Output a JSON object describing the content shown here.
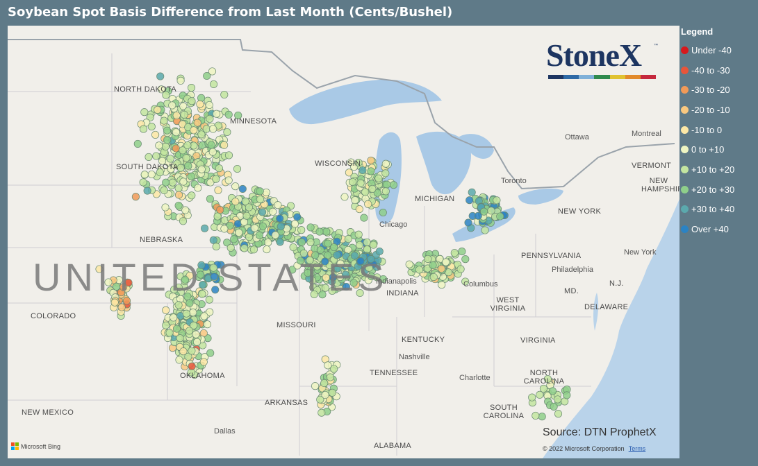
{
  "title": "Soybean Spot Basis Difference from Last Month (Cents/Bushel)",
  "legend": {
    "title": "Legend",
    "items": [
      {
        "label": "Under -40",
        "color": "#d7191c"
      },
      {
        "label": "-40 to -30",
        "color": "#e8553a"
      },
      {
        "label": "-30 to -20",
        "color": "#f19a58"
      },
      {
        "label": "-20 to -10",
        "color": "#f9c880"
      },
      {
        "label": "-10 to 0",
        "color": "#fde8a6"
      },
      {
        "label": "0 to +10",
        "color": "#eef5c2"
      },
      {
        "label": "+10 to +20",
        "color": "#c3e5a0"
      },
      {
        "label": "+20 to +30",
        "color": "#8fcf8a"
      },
      {
        "label": "+30 to +40",
        "color": "#5ba9ad"
      },
      {
        "label": "Over +40",
        "color": "#2b83c4"
      }
    ]
  },
  "logo": {
    "text": "StoneX",
    "tm": "™",
    "stripe_colors": [
      "#1d3561",
      "#2f6aa6",
      "#7fb0d8",
      "#2f8a4d",
      "#e0c230",
      "#e28a2a",
      "#c5283d"
    ]
  },
  "map": {
    "country_label": "UNITED STATES",
    "state_labels": [
      "NORTH DAKOTA",
      "SOUTH DAKOTA",
      "MINNESOTA",
      "NEBRASKA",
      "COLORADO",
      "MISSOURI",
      "KENTUCKY",
      "TENNESSEE",
      "OKLAHOMA",
      "ARKANSAS",
      "NEW MEXICO",
      "ALABAMA",
      "WEST VIRGINIA",
      "VIRGINIA",
      "NORTH CAROLINA",
      "SOUTH CAROLINA",
      "PENNSYLVANIA",
      "NEW YORK",
      "VERMONT",
      "NEW HAMPSHIRE",
      "WISCONSIN",
      "MICHIGAN",
      "INDIANA",
      "DELAWARE",
      "MD.",
      "N.J."
    ],
    "city_labels": [
      "Chicago",
      "Columbus",
      "Nashville",
      "Charlotte",
      "Dallas",
      "Philadelphia",
      "New York",
      "Ottawa",
      "Montreal",
      "Toronto",
      "Indianapolis"
    ],
    "source": "Source: DTN ProphetX",
    "copyright": "© 2022 Microsoft Corporation",
    "terms": "Terms",
    "attribution": "Microsoft Bing"
  }
}
